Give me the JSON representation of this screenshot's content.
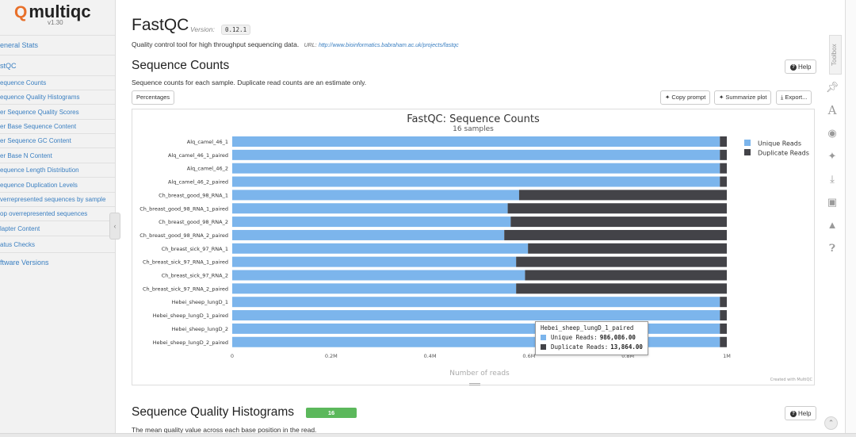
{
  "sidebar": {
    "logo_text": "multiqc",
    "version": "v1.30",
    "items": [
      {
        "label": "eneral Stats",
        "level": "main"
      },
      {
        "label": "stQC",
        "level": "main"
      },
      {
        "label": "equence Counts",
        "level": "sub"
      },
      {
        "label": "equence Quality Histograms",
        "level": "sub"
      },
      {
        "label": "er Sequence Quality Scores",
        "level": "sub"
      },
      {
        "label": "er Base Sequence Content",
        "level": "sub"
      },
      {
        "label": "er Sequence GC Content",
        "level": "sub"
      },
      {
        "label": "er Base N Content",
        "level": "sub"
      },
      {
        "label": "equence Length Distribution",
        "level": "sub"
      },
      {
        "label": "equence Duplication Levels",
        "level": "sub"
      },
      {
        "label": "verrepresented sequences by sample",
        "level": "sub"
      },
      {
        "label": "op overrepresented sequences",
        "level": "sub"
      },
      {
        "label": "lapter Content",
        "level": "sub"
      },
      {
        "label": "atus Checks",
        "level": "sub"
      },
      {
        "label": "ftware Versions",
        "level": "main"
      }
    ]
  },
  "module": {
    "title": "FastQC",
    "version_label": "Version:",
    "version": "0.12.1",
    "description": "Quality control tool for high throughput sequencing data.",
    "url_label": "URL:",
    "url": "http://www.bioinformatics.babraham.ac.uk/projects/fastqc"
  },
  "sequence_counts": {
    "heading": "Sequence Counts",
    "help": "Help",
    "description": "Sequence counts for each sample. Duplicate read counts are an estimate only.",
    "percentages_button": "Percentages",
    "copy_prompt_button": "Copy prompt",
    "summarize_button": "Summarize plot",
    "export_button": "Export..."
  },
  "chart_data": {
    "type": "bar",
    "orientation": "horizontal",
    "stacked": true,
    "title": "FastQC: Sequence Counts",
    "subtitle": "16 samples",
    "xlabel": "Number of reads",
    "ylabel": "",
    "xlim": [
      0,
      1000000
    ],
    "xticks": [
      "0",
      "0.2M",
      "0.4M",
      "0.6M",
      "0.8M",
      "1M"
    ],
    "legend_position": "top-right",
    "grid": false,
    "credit": "Created with MultiQC",
    "categories": [
      "Alq_camel_46_1",
      "Alq_camel_46_1_paired",
      "Alq_camel_46_2",
      "Alq_camel_46_2_paired",
      "Ch_breast_good_98_RNA_1",
      "Ch_breast_good_98_RNA_1_paired",
      "Ch_breast_good_98_RNA_2",
      "Ch_breast_good_98_RNA_2_paired",
      "Ch_breast_sick_97_RNA_1",
      "Ch_breast_sick_97_RNA_1_paired",
      "Ch_breast_sick_97_RNA_2",
      "Ch_breast_sick_97_RNA_2_paired",
      "Hebei_sheep_lungD_1",
      "Hebei_sheep_lungD_1_paired",
      "Hebei_sheep_lungD_2",
      "Hebei_sheep_lungD_2_paired"
    ],
    "series": [
      {
        "name": "Unique Reads",
        "color": "#7cb5ec",
        "values": [
          986000,
          986000,
          986000,
          986000,
          580000,
          557000,
          563000,
          550000,
          598000,
          574000,
          592000,
          574000,
          986000,
          986086,
          986000,
          986000
        ]
      },
      {
        "name": "Duplicate Reads",
        "color": "#434348",
        "values": [
          14000,
          14000,
          14000,
          14000,
          420000,
          443000,
          437000,
          450000,
          402000,
          426000,
          408000,
          426000,
          14000,
          13864,
          14000,
          14000
        ]
      }
    ],
    "tooltip": {
      "sample": "Hebei_sheep_lungD_1_paired",
      "unique_label": "Unique Reads:",
      "unique_value": "986,086.00",
      "duplicate_label": "Duplicate Reads:",
      "duplicate_value": "13,864.00"
    }
  },
  "quality_histograms": {
    "heading": "Sequence Quality Histograms",
    "badge": "16",
    "badge_color": "#5cb85c",
    "help": "Help",
    "description": "The mean quality value across each base position in the read."
  },
  "toolbox": {
    "label": "Toolbox",
    "icons": [
      "pin-icon",
      "font-icon",
      "eye-slash-icon",
      "sparkle-icon",
      "download-icon",
      "save-icon",
      "graduation-cap-icon",
      "question-circle-icon"
    ]
  },
  "colors": {
    "accent": "#3a7fc1",
    "logo_accent": "#e8702a",
    "unique": "#7cb5ec",
    "duplicate": "#434348"
  }
}
